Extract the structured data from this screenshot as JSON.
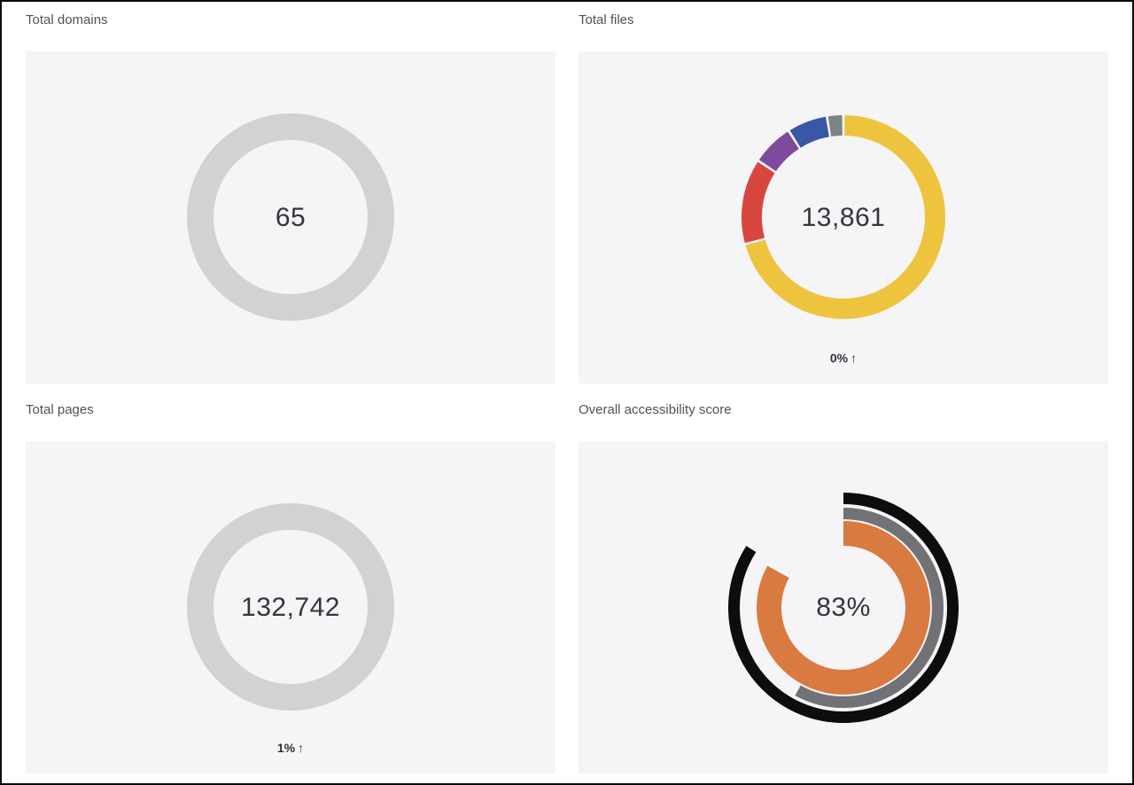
{
  "page": {
    "background": "#ffffff",
    "frame_border_color": "#0a0a0a",
    "card_background": "#f5f4f6",
    "title_color": "#4f5257",
    "value_color": "#34363a"
  },
  "chart_data": [
    {
      "type": "donut",
      "title": "Total domains",
      "center_label": "65",
      "legend_position": "none",
      "segments": [
        {
          "label": "total",
          "percent": 100,
          "color": "#d2d2d2"
        }
      ]
    },
    {
      "type": "donut",
      "title": "Total files",
      "center_label": "13,861",
      "change_value": "0%",
      "change_arrow": "↑",
      "legend_position": "none",
      "segments": [
        {
          "label": "yellow-segment",
          "percent": 70.7,
          "color": "#eec33e"
        },
        {
          "label": "red-segment",
          "percent": 13.6,
          "color": "#d8473f"
        },
        {
          "label": "purple-segment",
          "percent": 6.7,
          "color": "#7e4a9c"
        },
        {
          "label": "blue-segment",
          "percent": 6.4,
          "color": "#3a57a7"
        },
        {
          "label": "gray-segment",
          "percent": 2.6,
          "color": "#7d8488"
        }
      ]
    },
    {
      "type": "donut",
      "title": "Total pages",
      "center_label": "132,742",
      "change_value": "1%",
      "change_arrow": "↑",
      "legend_position": "none",
      "segments": [
        {
          "label": "total",
          "percent": 100,
          "color": "#d2d2d2"
        }
      ]
    },
    {
      "type": "gauge",
      "title": "Overall accessibility score",
      "center_label": "83%",
      "legend_position": "none",
      "rings": [
        {
          "label": "outer-black-ring",
          "percent": 84,
          "color": "#0d0d0e"
        },
        {
          "label": "middle-gray-ring",
          "percent": 58,
          "color": "#717276"
        },
        {
          "label": "inner-orange-ring",
          "percent": 83,
          "color": "#d97a40"
        }
      ]
    }
  ]
}
